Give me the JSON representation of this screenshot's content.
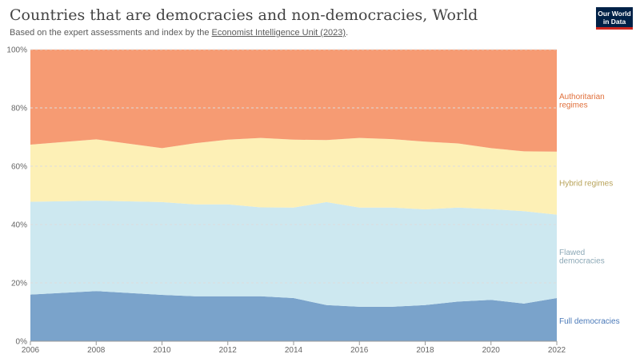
{
  "header": {
    "title": "Countries that are democracies and non-democracies, World",
    "subtitle_prefix": "Based on the expert assessments and index by the ",
    "subtitle_link": "Economist Intelligence Unit (2023)",
    "subtitle_suffix": ".",
    "logo_line1": "Our World",
    "logo_line2": "in Data"
  },
  "colors": {
    "full_democracies": "#7aa3cb",
    "flawed_democracies": "#cde8f0",
    "hybrid_regimes": "#fdf0b6",
    "authoritarian_regimes": "#f69b73",
    "full_label": "#4a79b8",
    "flawed_label": "#8da9b7",
    "hybrid_label": "#b8a35a",
    "authoritarian_label": "#e0703c"
  },
  "chart_data": {
    "type": "area",
    "stacked": true,
    "x": [
      2006,
      2008,
      2010,
      2011,
      2012,
      2013,
      2014,
      2015,
      2016,
      2017,
      2018,
      2019,
      2020,
      2021,
      2022
    ],
    "x_ticks": [
      "2006",
      "2008",
      "2010",
      "2012",
      "2014",
      "2016",
      "2018",
      "2020",
      "2022"
    ],
    "y_ticks": [
      "0%",
      "20%",
      "40%",
      "60%",
      "80%",
      "100%"
    ],
    "ylim": [
      0,
      100
    ],
    "series": [
      {
        "name": "Full democracies",
        "key": "full_democracies",
        "values": [
          16.0,
          17.2,
          15.9,
          15.4,
          15.4,
          15.4,
          14.8,
          12.4,
          11.8,
          11.8,
          12.4,
          13.6,
          14.2,
          12.9,
          14.8
        ]
      },
      {
        "name": "Flawed democracies",
        "key": "flawed_democracies",
        "values": [
          31.8,
          31.0,
          31.8,
          31.5,
          31.5,
          30.5,
          31.0,
          35.3,
          34.0,
          34.0,
          32.8,
          32.2,
          31.1,
          31.7,
          28.6
        ]
      },
      {
        "name": "Hybrid regimes",
        "key": "hybrid_regimes",
        "values": [
          19.6,
          21.0,
          18.5,
          21.0,
          22.2,
          23.8,
          23.3,
          21.3,
          23.9,
          23.5,
          23.2,
          22.0,
          20.9,
          20.5,
          21.6
        ]
      },
      {
        "name": "Authoritarian regimes",
        "key": "authoritarian_regimes",
        "values": [
          32.6,
          30.8,
          33.8,
          32.1,
          30.9,
          30.3,
          30.9,
          31.0,
          30.3,
          30.7,
          31.6,
          32.2,
          33.8,
          34.9,
          35.0
        ]
      }
    ],
    "labels": {
      "authoritarian": [
        "Authoritarian",
        "regimes"
      ],
      "hybrid": [
        "Hybrid regimes"
      ],
      "flawed": [
        "Flawed",
        "democracies"
      ],
      "full": [
        "Full democracies"
      ]
    }
  }
}
